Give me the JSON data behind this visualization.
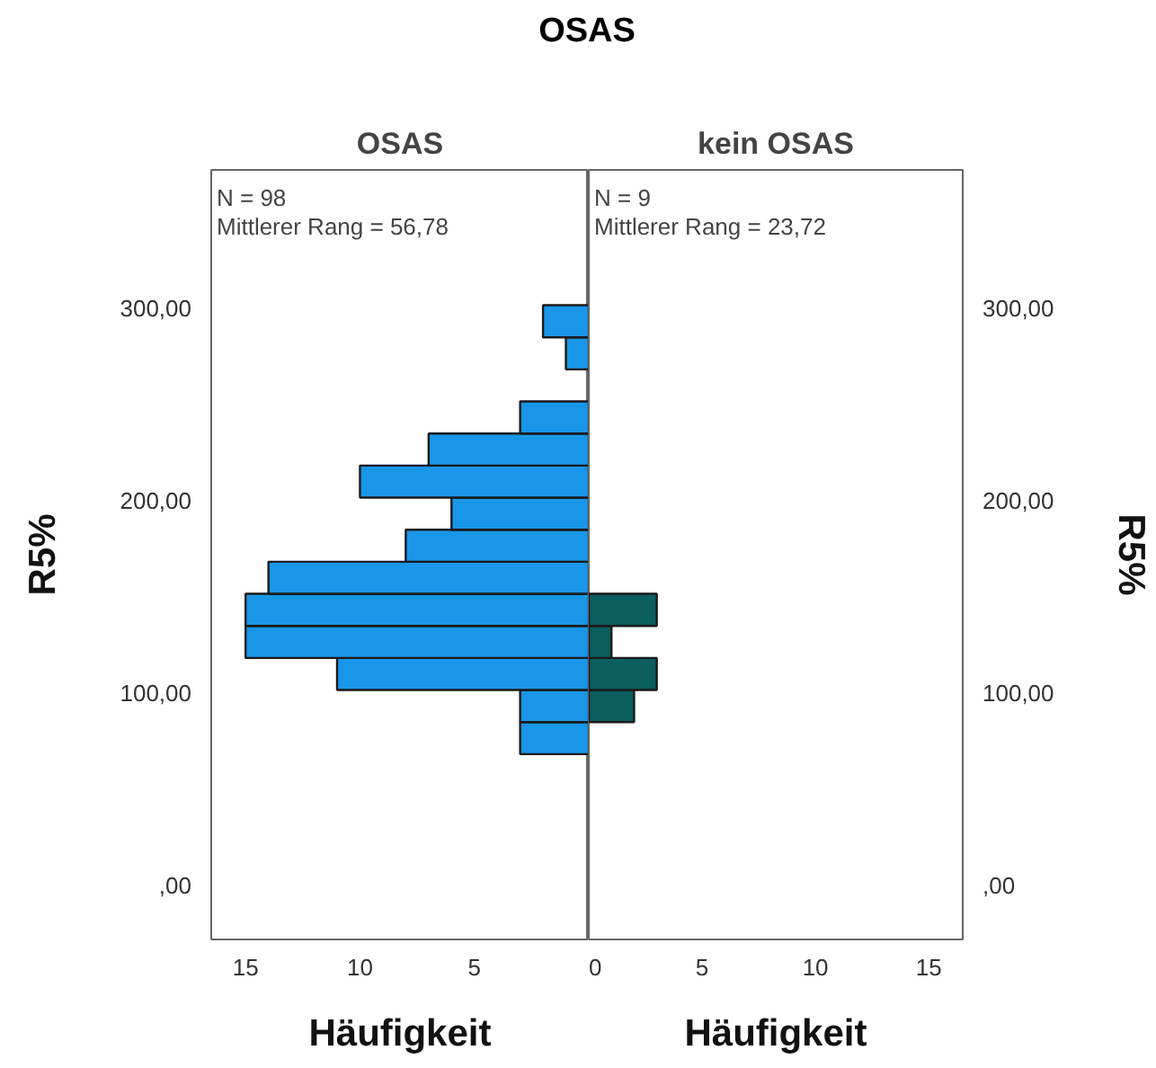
{
  "chart_data": [
    {
      "type": "histogram",
      "title": "OSAS",
      "subtitle": "OSAS",
      "orientation": "horizontal",
      "xlabel": "Häufigkeit",
      "ylabel": "R5%",
      "bins": [
        68.33,
        85,
        101.67,
        118.33,
        135,
        151.67,
        168.33,
        185,
        201.67,
        218.33,
        235,
        251.67,
        268.33,
        285,
        301.67
      ],
      "values": [
        3,
        3,
        11,
        15,
        15,
        14,
        8,
        6,
        10,
        7,
        3,
        0,
        1,
        2
      ],
      "color": "#1a96e8",
      "xlim": [
        16.5,
        0
      ],
      "xticks": [
        15,
        10,
        5
      ],
      "ylim": [
        -28,
        372
      ],
      "yticks": [
        {
          "value": 0,
          "label": ",00"
        },
        {
          "value": 100,
          "label": "100,00"
        },
        {
          "value": 200,
          "label": "200,00"
        },
        {
          "value": 300,
          "label": "300,00"
        }
      ],
      "annotations": [
        "N = 98",
        "Mittlerer Rang = 56,78"
      ],
      "grid": false
    },
    {
      "type": "histogram",
      "subtitle": "kein OSAS",
      "orientation": "horizontal",
      "xlabel": "Häufigkeit",
      "ylabel": "R5%",
      "bins": [
        68.33,
        85,
        101.67,
        118.33,
        135,
        151.67,
        168.33,
        185,
        201.67,
        218.33,
        235,
        251.67,
        268.33,
        285,
        301.67
      ],
      "values": [
        0,
        2,
        3,
        1,
        3,
        0,
        0,
        0,
        0,
        0,
        0,
        0,
        0,
        0
      ],
      "color": "#0a5e5e",
      "xlim": [
        0,
        16.5
      ],
      "xticks": [
        0,
        5,
        10,
        15
      ],
      "ylim": [
        -28,
        372
      ],
      "yticks": [
        {
          "value": 0,
          "label": ",00"
        },
        {
          "value": 100,
          "label": "100,00"
        },
        {
          "value": 200,
          "label": "200,00"
        },
        {
          "value": 300,
          "label": "300,00"
        }
      ],
      "annotations": [
        "N = 9",
        "Mittlerer Rang = 23,72"
      ],
      "grid": false
    }
  ]
}
